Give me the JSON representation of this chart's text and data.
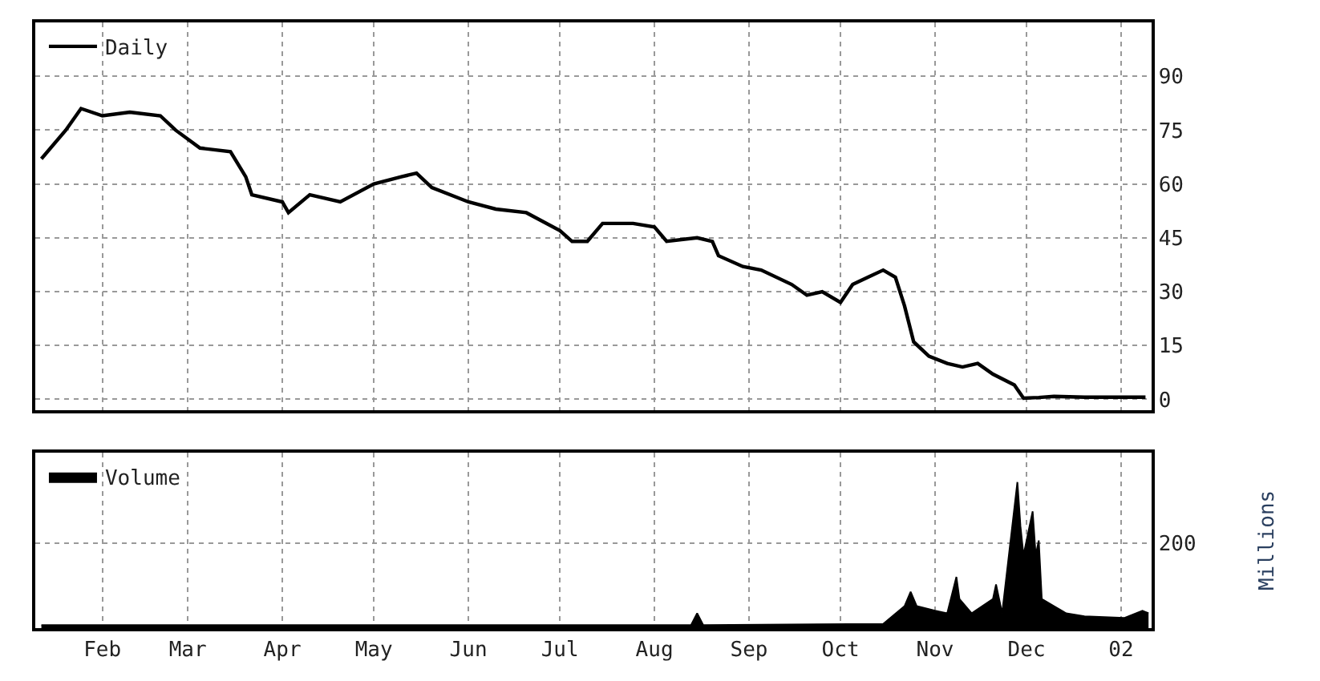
{
  "chart_data": [
    {
      "type": "line",
      "legend": "top left",
      "grid": true,
      "tick_labels": "y",
      "line_style": "solid",
      "x": [
        "2001-01-12",
        "2001-01-20",
        "2001-01-25",
        "2001-02-01",
        "2001-02-10",
        "2001-02-20",
        "2001-02-25",
        "2001-03-05",
        "2001-03-15",
        "2001-03-20",
        "2001-03-22",
        "2001-04-01",
        "2001-04-03",
        "2001-04-10",
        "2001-04-20",
        "2001-05-01",
        "2001-05-10",
        "2001-05-15",
        "2001-05-20",
        "2001-06-01",
        "2001-06-10",
        "2001-06-20",
        "2001-07-01",
        "2001-07-05",
        "2001-07-10",
        "2001-07-15",
        "2001-07-25",
        "2001-08-01",
        "2001-08-05",
        "2001-08-15",
        "2001-08-20",
        "2001-08-22",
        "2001-08-30",
        "2001-09-05",
        "2001-09-15",
        "2001-09-20",
        "2001-09-25",
        "2001-10-01",
        "2001-10-05",
        "2001-10-10",
        "2001-10-15",
        "2001-10-19",
        "2001-10-22",
        "2001-10-25",
        "2001-10-30",
        "2001-11-05",
        "2001-11-10",
        "2001-11-15",
        "2001-11-20",
        "2001-11-27",
        "2001-11-30",
        "2001-12-05",
        "2001-12-10",
        "2001-12-20",
        "2002-01-09"
      ],
      "series": [
        {
          "name": "Daily",
          "color": "#000000",
          "values": [
            67,
            75,
            81,
            79,
            80,
            79,
            75,
            70,
            69,
            62,
            57,
            55,
            52,
            57,
            55,
            60,
            62,
            63,
            59,
            55,
            53,
            52,
            47,
            44,
            44,
            49,
            49,
            48,
            44,
            45,
            44,
            40,
            37,
            36,
            32,
            29,
            30,
            27,
            32,
            34,
            36,
            34,
            26,
            16,
            12,
            10,
            9,
            10,
            7,
            4,
            0.3,
            0.5,
            0.8,
            0.6,
            0.6
          ]
        }
      ],
      "xlim": [
        "2001-01-10",
        "2002-01-11"
      ],
      "xticks": [
        {
          "value": "2001-02-01",
          "label": null
        },
        {
          "value": "2001-03-01",
          "label": null
        },
        {
          "value": "2001-04-01",
          "label": null
        },
        {
          "value": "2001-05-01",
          "label": null
        },
        {
          "value": "2001-06-01",
          "label": null
        },
        {
          "value": "2001-07-01",
          "label": null
        },
        {
          "value": "2001-08-01",
          "label": null
        },
        {
          "value": "2001-09-01",
          "label": null
        },
        {
          "value": "2001-10-01",
          "label": null
        },
        {
          "value": "2001-11-01",
          "label": null
        },
        {
          "value": "2001-12-01",
          "label": null
        },
        {
          "value": "2002-01-01",
          "label": null
        }
      ],
      "ylim": [
        -3,
        105
      ],
      "yticks": [
        0,
        15,
        30,
        45,
        60,
        75,
        90
      ]
    },
    {
      "type": "area",
      "legend": "top left",
      "grid": true,
      "ylabel": "Millions",
      "ylim": [
        0,
        415
      ],
      "yticks": [
        {
          "value": 0,
          "label": null
        },
        200
      ],
      "x": [
        "2001-01-12",
        "2001-03-01",
        "2001-06-01",
        "2001-08-13",
        "2001-08-15",
        "2001-08-17",
        "2001-10-15",
        "2001-10-22",
        "2001-10-24",
        "2001-10-26",
        "2001-11-01",
        "2001-11-05",
        "2001-11-08",
        "2001-11-09",
        "2001-11-13",
        "2001-11-20",
        "2001-11-21",
        "2001-11-23",
        "2001-11-28",
        "2001-11-29",
        "2001-11-30",
        "2001-12-03",
        "2001-12-04",
        "2001-12-05",
        "2001-12-06",
        "2001-12-10",
        "2001-12-14",
        "2001-12-20",
        "2002-01-02",
        "2002-01-08",
        "2002-01-10"
      ],
      "series": [
        {
          "name": "Volume",
          "color": "#000000",
          "values": [
            7,
            7,
            7,
            7,
            35,
            7,
            10,
            52,
            86,
            52,
            41,
            35,
            121,
            69,
            35,
            69,
            103,
            35,
            345,
            241,
            172,
            276,
            172,
            207,
            69,
            52,
            35,
            28,
            24,
            41,
            35
          ]
        }
      ],
      "xlim": [
        "2001-01-10",
        "2002-01-11"
      ],
      "xticks": [
        {
          "value": "2001-02-01",
          "label": "Feb"
        },
        {
          "value": "2001-03-01",
          "label": "Mar"
        },
        {
          "value": "2001-04-01",
          "label": "Apr"
        },
        {
          "value": "2001-05-01",
          "label": "May"
        },
        {
          "value": "2001-06-01",
          "label": "Jun"
        },
        {
          "value": "2001-07-01",
          "label": "Jul"
        },
        {
          "value": "2001-08-01",
          "label": "Aug"
        },
        {
          "value": "2001-09-01",
          "label": "Sep"
        },
        {
          "value": "2001-10-01",
          "label": "Oct"
        },
        {
          "value": "2001-11-01",
          "label": "Nov"
        },
        {
          "value": "2001-12-01",
          "label": "Dec"
        },
        {
          "value": "2002-01-01",
          "label": "02"
        }
      ]
    }
  ]
}
